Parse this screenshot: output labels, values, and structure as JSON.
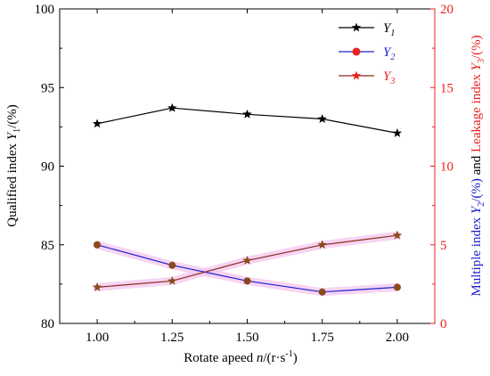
{
  "chart_data": {
    "type": "line",
    "categories": [
      "1.00",
      "1.25",
      "1.50",
      "1.75",
      "2.00"
    ],
    "x": [
      1.0,
      1.25,
      1.5,
      1.75,
      2.0
    ],
    "xlim": [
      0.875,
      2.125
    ],
    "xticks": [
      "1.00",
      "1.25",
      "1.50",
      "1.75",
      "2.00"
    ],
    "left_axis": {
      "ylim": [
        80,
        100
      ],
      "ticks": [
        "80",
        "85",
        "90",
        "95",
        "100"
      ],
      "color": "#000000"
    },
    "right_axis": {
      "ylim": [
        0,
        20
      ],
      "ticks": [
        "0",
        "5",
        "10",
        "15",
        "20"
      ],
      "color": "#e8231f"
    },
    "xlabel": {
      "prefix": "Rotate apeed ",
      "var": "n",
      "unit": "/(r·s",
      "sup": "-1",
      "close": ")"
    },
    "ylabel_left": {
      "prefix": "Qualified index ",
      "var": "Y",
      "sub": "1",
      "unit": "/(%)"
    },
    "ylabel_right": {
      "part1_prefix": "Multiple index ",
      "part1_var": "Y",
      "part1_sub": "2",
      "part1_unit": "/(%)",
      "and": " and ",
      "part2_prefix": "Leakage index ",
      "part2_var": "Y",
      "part2_sub": "3",
      "part2_unit": "/(%)",
      "part1_color": "#1a1acc",
      "part2_color": "#e8231f"
    },
    "legend_position": "top-right",
    "series": [
      {
        "name": "Y",
        "sub": "1",
        "axis": "left",
        "values": [
          92.7,
          93.7,
          93.3,
          93.0,
          92.1
        ],
        "line_color": "#000000",
        "marker": "star",
        "marker_color": "#000000",
        "text_color": "#000000"
      },
      {
        "name": "Y",
        "sub": "2",
        "axis": "right",
        "values": [
          5.0,
          3.7,
          2.7,
          2.0,
          2.3
        ],
        "line_color": "#2020d0",
        "marker": "circle",
        "marker_color": "#e8231f",
        "text_color": "#2020d0"
      },
      {
        "name": "Y",
        "sub": "3",
        "axis": "right",
        "values": [
          2.3,
          2.7,
          4.0,
          5.0,
          5.6
        ],
        "line_color": "#8b2a1a",
        "marker": "star",
        "marker_color": "#e8231f",
        "text_color": "#e8231f"
      }
    ],
    "overlap_marker_color": "#8a4a1a",
    "highlight_color": "#f3c6ef"
  }
}
